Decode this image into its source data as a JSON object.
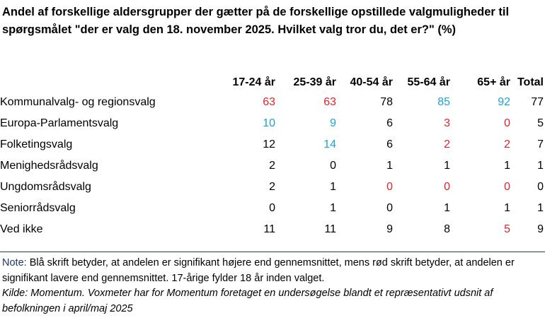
{
  "title": "Andel af forskellige aldersgrupper der gætter på de forskellige opstillede valgmuligheder til spørgsmålet \"der er valg den 18. november 2025. Hvilket valg tror du, det er?\" (%)",
  "colors": {
    "significant_high": "#1aa3d9",
    "significant_low": "#e0242b",
    "note_label": "#1f3864"
  },
  "columns": [
    "17-24 år",
    "25-39 år",
    "40-54 år",
    "55-64 år",
    "65+ år",
    "Total"
  ],
  "rows": [
    {
      "label": "Kommunalvalg- og regionsvalg",
      "values": [
        "63",
        "63",
        "78",
        "85",
        "92",
        "77"
      ],
      "sig": [
        "low",
        "low",
        "",
        "high",
        "high",
        ""
      ]
    },
    {
      "label": "Europa-Parlamentsvalg",
      "values": [
        "10",
        "9",
        "6",
        "3",
        "0",
        "5"
      ],
      "sig": [
        "high",
        "high",
        "",
        "low",
        "low",
        ""
      ]
    },
    {
      "label": "Folketingsvalg",
      "values": [
        "12",
        "14",
        "6",
        "2",
        "2",
        "7"
      ],
      "sig": [
        "",
        "high",
        "",
        "low",
        "low",
        ""
      ]
    },
    {
      "label": "Menighedsrådsvalg",
      "values": [
        "2",
        "0",
        "1",
        "1",
        "1",
        "1"
      ],
      "sig": [
        "",
        "",
        "",
        "",
        "",
        ""
      ]
    },
    {
      "label": "Ungdomsrådsvalg",
      "values": [
        "2",
        "1",
        "0",
        "0",
        "0",
        "0"
      ],
      "sig": [
        "",
        "",
        "low",
        "low",
        "low",
        ""
      ]
    },
    {
      "label": "Seniorrådsvalg",
      "values": [
        "0",
        "1",
        "0",
        "1",
        "1",
        "1"
      ],
      "sig": [
        "",
        "",
        "",
        "",
        "",
        ""
      ]
    },
    {
      "label": "Ved ikke",
      "values": [
        "11",
        "11",
        "9",
        "8",
        "5",
        "9"
      ],
      "sig": [
        "",
        "",
        "",
        "",
        "low",
        ""
      ]
    }
  ],
  "note": {
    "label": "Note:",
    "text": " Blå skrift betyder, at andelen er signifikant højere end gennemsnittet, mens rød skrift betyder, at andelen er signifikant lavere end gennemsnittet. 17-årige fylder 18 år inden valget."
  },
  "source": "Kilde: Momentum. Voxmeter har for Momentum foretaget en undersøgelse blandt et repræsentativt udsnit af befolkningen i april/maj 2025"
}
